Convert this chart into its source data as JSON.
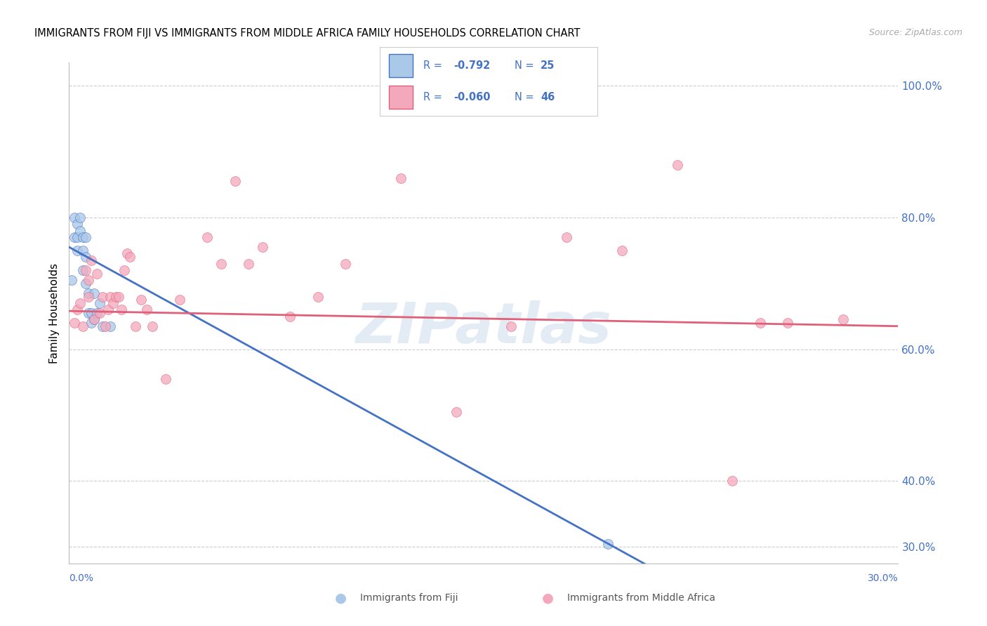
{
  "title": "IMMIGRANTS FROM FIJI VS IMMIGRANTS FROM MIDDLE AFRICA FAMILY HOUSEHOLDS CORRELATION CHART",
  "source": "Source: ZipAtlas.com",
  "ylabel": "Family Households",
  "watermark": "ZIPatlas",
  "fiji_scatter_color": "#aac8e8",
  "fiji_line_color": "#4472c4",
  "ma_scatter_color": "#f4a8bc",
  "ma_line_color": "#e0607a",
  "fiji_R": "-0.792",
  "fiji_N": "25",
  "ma_R": "-0.060",
  "ma_N": "46",
  "xlim": [
    0.0,
    0.3
  ],
  "ylim": [
    0.275,
    1.035
  ],
  "yticks": [
    0.3,
    0.4,
    0.6,
    0.8,
    1.0
  ],
  "ytick_labels": [
    "30.0%",
    "40.0%",
    "60.0%",
    "80.0%",
    "100.0%"
  ],
  "fiji_x": [
    0.001,
    0.002,
    0.002,
    0.003,
    0.003,
    0.003,
    0.004,
    0.004,
    0.005,
    0.005,
    0.005,
    0.006,
    0.006,
    0.006,
    0.007,
    0.007,
    0.008,
    0.008,
    0.009,
    0.009,
    0.01,
    0.011,
    0.012,
    0.015,
    0.195
  ],
  "fiji_y": [
    0.705,
    0.8,
    0.77,
    0.79,
    0.77,
    0.75,
    0.8,
    0.78,
    0.77,
    0.75,
    0.72,
    0.77,
    0.74,
    0.7,
    0.685,
    0.655,
    0.655,
    0.64,
    0.685,
    0.645,
    0.655,
    0.67,
    0.635,
    0.635,
    0.305
  ],
  "ma_x": [
    0.002,
    0.003,
    0.004,
    0.005,
    0.006,
    0.007,
    0.007,
    0.008,
    0.009,
    0.01,
    0.011,
    0.012,
    0.013,
    0.014,
    0.015,
    0.016,
    0.017,
    0.018,
    0.019,
    0.02,
    0.021,
    0.022,
    0.024,
    0.026,
    0.028,
    0.03,
    0.035,
    0.04,
    0.05,
    0.055,
    0.06,
    0.065,
    0.07,
    0.08,
    0.09,
    0.1,
    0.12,
    0.14,
    0.16,
    0.18,
    0.2,
    0.22,
    0.24,
    0.25,
    0.26,
    0.28
  ],
  "ma_y": [
    0.64,
    0.66,
    0.67,
    0.635,
    0.72,
    0.705,
    0.68,
    0.735,
    0.645,
    0.715,
    0.655,
    0.68,
    0.635,
    0.66,
    0.68,
    0.67,
    0.68,
    0.68,
    0.66,
    0.72,
    0.745,
    0.74,
    0.635,
    0.675,
    0.66,
    0.635,
    0.555,
    0.675,
    0.77,
    0.73,
    0.855,
    0.73,
    0.755,
    0.65,
    0.68,
    0.73,
    0.86,
    0.505,
    0.635,
    0.77,
    0.75,
    0.88,
    0.4,
    0.64,
    0.64,
    0.645
  ]
}
